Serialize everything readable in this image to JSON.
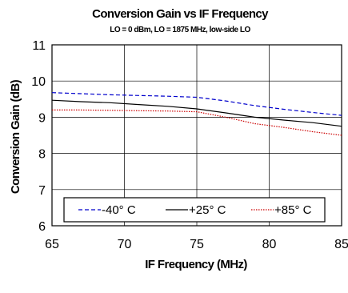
{
  "chart_data": {
    "type": "line",
    "title": "Conversion Gain vs IF Frequency",
    "subtitle": "LO = 0 dBm, LO = 1875 MHz, low-side LO",
    "xlabel": "IF Frequency (MHz)",
    "ylabel": "Conversion Gain (dB)",
    "xlim": [
      65,
      85
    ],
    "ylim": [
      6,
      11
    ],
    "xticks": [
      65,
      70,
      75,
      80,
      85
    ],
    "yticks": [
      6,
      7,
      8,
      9,
      10,
      11
    ],
    "grid": true,
    "legend_position": "bottom",
    "series": [
      {
        "name": "-40° C",
        "color": "#0000cc",
        "style": "dashed",
        "x": [
          65,
          67,
          69,
          71,
          73,
          75,
          77,
          79,
          81,
          83,
          85
        ],
        "y": [
          9.68,
          9.65,
          9.62,
          9.6,
          9.58,
          9.55,
          9.45,
          9.32,
          9.22,
          9.13,
          9.05
        ]
      },
      {
        "name": "+25° C",
        "color": "#000000",
        "style": "solid",
        "x": [
          65,
          67,
          69,
          71,
          73,
          75,
          77,
          79,
          81,
          83,
          85
        ],
        "y": [
          9.47,
          9.43,
          9.4,
          9.35,
          9.3,
          9.23,
          9.12,
          9.0,
          8.92,
          8.85,
          8.75
        ]
      },
      {
        "name": "+85° C",
        "color": "#cc0000",
        "style": "dotted",
        "x": [
          65,
          67,
          69,
          71,
          73,
          75,
          77,
          79,
          81,
          83,
          85
        ],
        "y": [
          9.2,
          9.2,
          9.19,
          9.18,
          9.17,
          9.15,
          9.0,
          8.82,
          8.72,
          8.6,
          8.5
        ]
      }
    ]
  }
}
